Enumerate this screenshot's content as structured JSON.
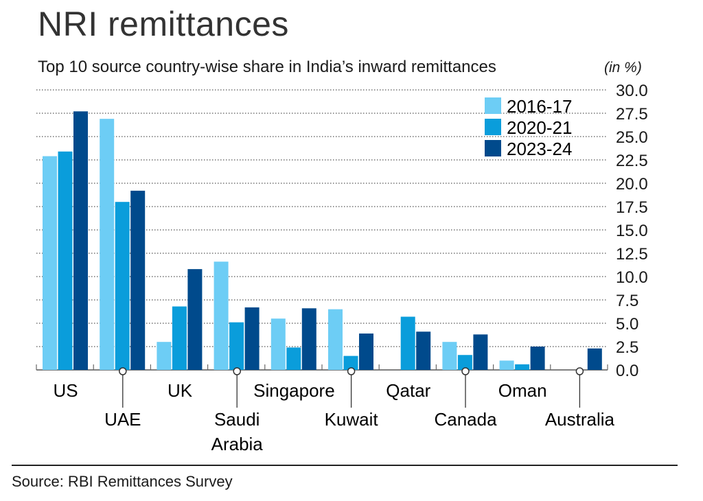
{
  "title": "NRI remittances",
  "subtitle": "Top 10 source country-wise share in India’s inward remittances",
  "unit": "(in %)",
  "source": "Source: RBI Remittances Survey",
  "colors": {
    "2016-17": "#6dcdf5",
    "2020-21": "#0a9ddb",
    "2023-24": "#004a8c"
  },
  "chart_data": {
    "type": "bar",
    "title": "NRI remittances",
    "ylabel": "in %",
    "ylim": [
      0,
      30
    ],
    "yticks": [
      "0.0",
      "2.5",
      "5.0",
      "7.5",
      "10.0",
      "12.5",
      "15.0",
      "17.5",
      "20.0",
      "22.5",
      "25.0",
      "27.5",
      "30.0"
    ],
    "grid": true,
    "legend_position": "top-right",
    "categories": [
      [
        "US"
      ],
      [
        "UAE"
      ],
      [
        "UK"
      ],
      [
        "Saudi",
        "Arabia"
      ],
      [
        "Singapore"
      ],
      [
        "Kuwait"
      ],
      [
        "Qatar"
      ],
      [
        "Canada"
      ],
      [
        "Oman"
      ],
      [
        "Australia"
      ]
    ],
    "series": [
      {
        "name": "2016-17",
        "values": [
          22.9,
          26.9,
          3.0,
          11.6,
          5.5,
          6.5,
          null,
          3.0,
          1.0,
          null
        ]
      },
      {
        "name": "2020-21",
        "values": [
          23.4,
          18.0,
          6.8,
          5.1,
          2.4,
          1.5,
          5.7,
          1.6,
          0.6,
          null
        ]
      },
      {
        "name": "2023-24",
        "values": [
          27.7,
          19.2,
          10.8,
          6.7,
          6.6,
          3.9,
          4.1,
          3.8,
          2.5,
          2.3
        ]
      }
    ]
  }
}
